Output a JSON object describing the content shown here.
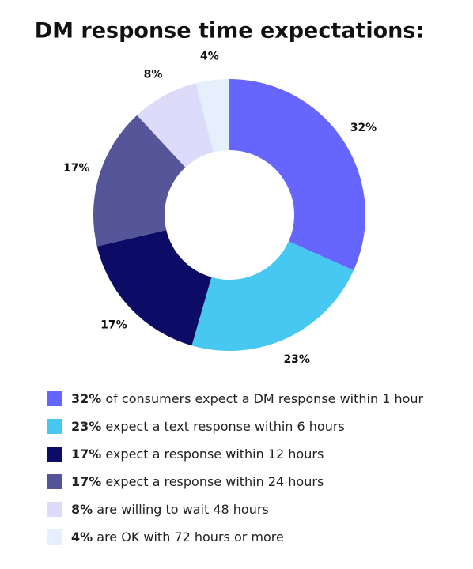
{
  "chart_data": {
    "type": "donut",
    "title": "DM response time expectations:",
    "categories": [
      "of consumers expect a DM response within 1 hour",
      "expect a text response within 6 hours",
      "expect a response within 12 hours",
      "expect a response within 24 hours",
      "are willing to wait 48 hours",
      "are OK with 72 hours or more"
    ],
    "values": [
      32,
      23,
      17,
      17,
      8,
      4
    ],
    "value_labels": [
      "32%",
      "23%",
      "17%",
      "17%",
      "8%",
      "4%"
    ],
    "colors": [
      "#6666ff",
      "#47c8f0",
      "#0c0c66",
      "#555599",
      "#dcdcfa",
      "#e6f0fc"
    ]
  }
}
